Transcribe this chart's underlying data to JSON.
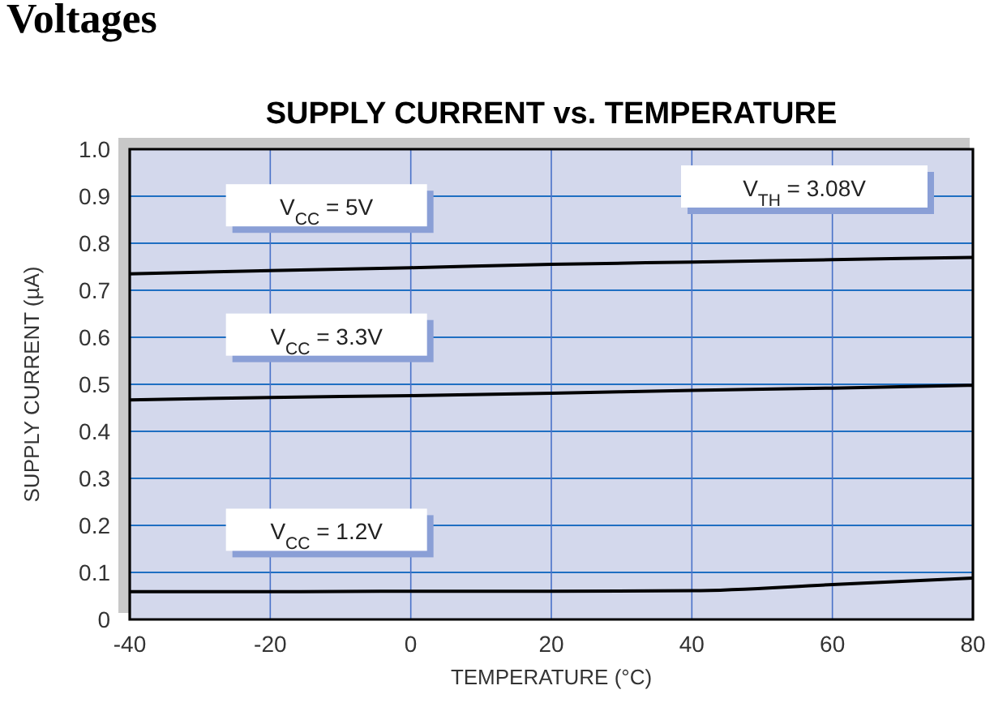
{
  "chart_data": {
    "type": "line",
    "title": "SUPPLY CURRENT vs. TEMPERATURE",
    "xlabel": "TEMPERATURE (°C)",
    "ylabel": "SUPPLY CURRENT (µA)",
    "annotations": [
      "Voltages",
      "V$_{TH}$ = 3.08V"
    ],
    "x": [
      -40,
      -20,
      0,
      20,
      40,
      60,
      80
    ],
    "series": [
      {
        "name": "V$_{CC}$ = 5V",
        "color": "#000000",
        "values": [
          0.735,
          0.742,
          0.748,
          0.755,
          0.76,
          0.765,
          0.77
        ]
      },
      {
        "name": "V$_{CC}$ = 3.3V",
        "color": "#000000",
        "values": [
          0.467,
          0.472,
          0.476,
          0.481,
          0.487,
          0.492,
          0.498
        ]
      },
      {
        "name": "V$_{CC}$ = 1.2V",
        "color": "#000000",
        "values": [
          0.059,
          0.059,
          0.06,
          0.06,
          0.061,
          0.074,
          0.088
        ]
      }
    ],
    "xlim": [
      -40,
      80
    ],
    "xticks": [
      -40,
      -20,
      0,
      20,
      40,
      60,
      80
    ],
    "ylim": [
      0,
      1
    ],
    "yticks": [
      0,
      0.1,
      0.2,
      0.3,
      0.4,
      0.5,
      0.6,
      0.7,
      0.8,
      0.9,
      {
        "value": 1,
        "label": "1.0"
      }
    ],
    "grid": true,
    "marker": "none",
    "line_style": "solid"
  }
}
